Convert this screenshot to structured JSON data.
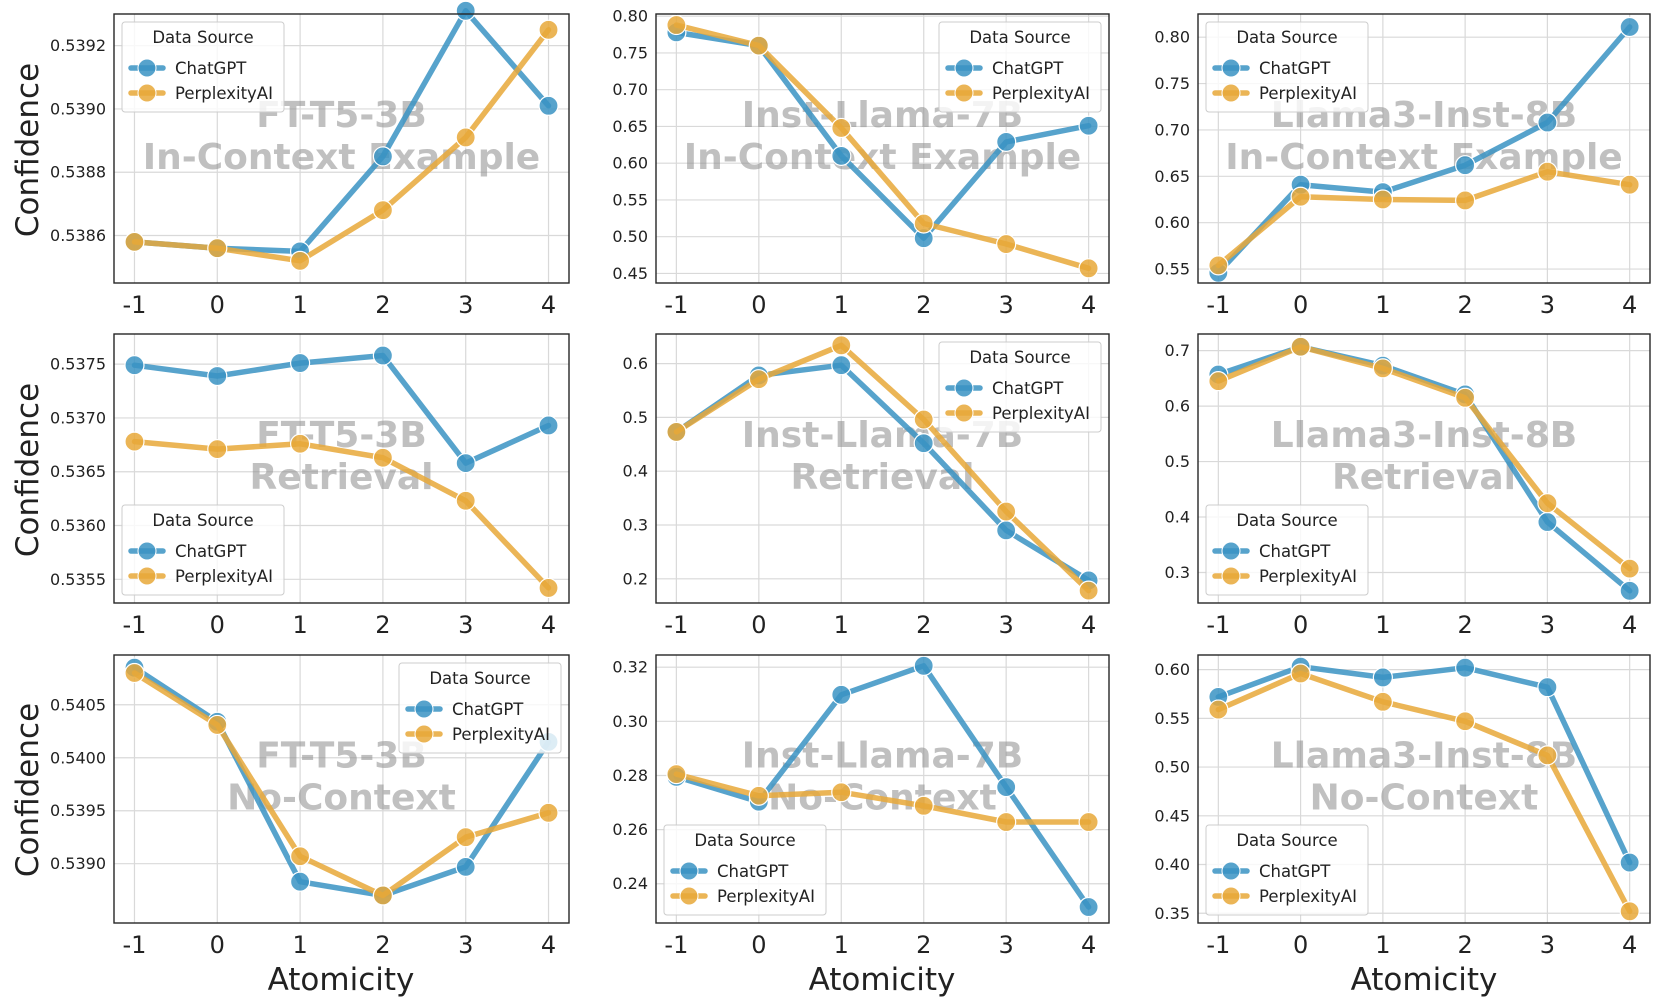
{
  "figure": {
    "xlabel": "Atomicity",
    "ylabel": "Confidence",
    "legend_title": "Data Source",
    "colors": {
      "ChatGPT": "#3a93c3",
      "PerplexityAI": "#e8a838"
    }
  },
  "chart_data": [
    {
      "type": "line",
      "title_lines": [
        "FT-T5-3B",
        "In-Context Example"
      ],
      "x": [
        -1,
        0,
        1,
        2,
        3,
        4
      ],
      "xticks": [
        "-1",
        "0",
        "1",
        "2",
        "3",
        "4"
      ],
      "ylim": [
        0.53845,
        0.5393
      ],
      "yticks": [
        "0.5386",
        "0.5388",
        "0.5390",
        "0.5392"
      ],
      "ytick_values": [
        0.5386,
        0.5388,
        0.539,
        0.5392
      ],
      "legend_loc": "upper-left",
      "series": [
        {
          "name": "ChatGPT",
          "values": [
            0.53858,
            0.53856,
            0.53855,
            0.53885,
            0.53931,
            0.53901
          ]
        },
        {
          "name": "PerplexityAI",
          "values": [
            0.53858,
            0.53856,
            0.53852,
            0.53868,
            0.53891,
            0.53925
          ]
        }
      ]
    },
    {
      "type": "line",
      "title_lines": [
        "Inst-Llama-7B",
        "In-Context Example"
      ],
      "x": [
        -1,
        0,
        1,
        2,
        3,
        4
      ],
      "xticks": [
        "-1",
        "0",
        "1",
        "2",
        "3",
        "4"
      ],
      "ylim": [
        0.437,
        0.803
      ],
      "yticks": [
        "0.45",
        "0.50",
        "0.55",
        "0.60",
        "0.65",
        "0.70",
        "0.75",
        "0.80"
      ],
      "ytick_values": [
        0.45,
        0.5,
        0.55,
        0.6,
        0.65,
        0.7,
        0.75,
        0.8
      ],
      "legend_loc": "upper-right",
      "series": [
        {
          "name": "ChatGPT",
          "values": [
            0.778,
            0.76,
            0.61,
            0.498,
            0.629,
            0.651
          ]
        },
        {
          "name": "PerplexityAI",
          "values": [
            0.788,
            0.76,
            0.648,
            0.518,
            0.49,
            0.457
          ]
        }
      ]
    },
    {
      "type": "line",
      "title_lines": [
        "Llama3-Inst-8B",
        "In-Context Example"
      ],
      "x": [
        -1,
        0,
        1,
        2,
        3,
        4
      ],
      "xticks": [
        "-1",
        "0",
        "1",
        "2",
        "3",
        "4"
      ],
      "ylim": [
        0.535,
        0.825
      ],
      "yticks": [
        "0.55",
        "0.60",
        "0.65",
        "0.70",
        "0.75",
        "0.80"
      ],
      "ytick_values": [
        0.55,
        0.6,
        0.65,
        0.7,
        0.75,
        0.8
      ],
      "legend_loc": "upper-left",
      "series": [
        {
          "name": "ChatGPT",
          "values": [
            0.546,
            0.641,
            0.633,
            0.662,
            0.708,
            0.811
          ]
        },
        {
          "name": "PerplexityAI",
          "values": [
            0.554,
            0.628,
            0.625,
            0.624,
            0.655,
            0.641
          ]
        }
      ]
    },
    {
      "type": "line",
      "title_lines": [
        "FT-T5-3B",
        "Retrieval"
      ],
      "x": [
        -1,
        0,
        1,
        2,
        3,
        4
      ],
      "xticks": [
        "-1",
        "0",
        "1",
        "2",
        "3",
        "4"
      ],
      "ylim": [
        0.53528,
        0.53778
      ],
      "yticks": [
        "0.5355",
        "0.5360",
        "0.5365",
        "0.5370",
        "0.5375"
      ],
      "ytick_values": [
        0.5355,
        0.536,
        0.5365,
        0.537,
        0.5375
      ],
      "legend_loc": "lower-left",
      "series": [
        {
          "name": "ChatGPT",
          "values": [
            0.53749,
            0.53739,
            0.53751,
            0.53758,
            0.53658,
            0.53693
          ]
        },
        {
          "name": "PerplexityAI",
          "values": [
            0.53678,
            0.53671,
            0.53676,
            0.53663,
            0.53623,
            0.53542
          ]
        }
      ]
    },
    {
      "type": "line",
      "title_lines": [
        "Inst-Llama-7B",
        "Retrieval"
      ],
      "x": [
        -1,
        0,
        1,
        2,
        3,
        4
      ],
      "xticks": [
        "-1",
        "0",
        "1",
        "2",
        "3",
        "4"
      ],
      "ylim": [
        0.155,
        0.655
      ],
      "yticks": [
        "0.2",
        "0.3",
        "0.4",
        "0.5",
        "0.6"
      ],
      "ytick_values": [
        0.2,
        0.3,
        0.4,
        0.5,
        0.6
      ],
      "legend_loc": "upper-right",
      "series": [
        {
          "name": "ChatGPT",
          "values": [
            0.473,
            0.578,
            0.597,
            0.452,
            0.29,
            0.197
          ]
        },
        {
          "name": "PerplexityAI",
          "values": [
            0.473,
            0.571,
            0.634,
            0.496,
            0.325,
            0.178
          ]
        }
      ]
    },
    {
      "type": "line",
      "title_lines": [
        "Llama3-Inst-8B",
        "Retrieval"
      ],
      "x": [
        -1,
        0,
        1,
        2,
        3,
        4
      ],
      "xticks": [
        "-1",
        "0",
        "1",
        "2",
        "3",
        "4"
      ],
      "ylim": [
        0.245,
        0.73
      ],
      "yticks": [
        "0.3",
        "0.4",
        "0.5",
        "0.6",
        "0.7"
      ],
      "ytick_values": [
        0.3,
        0.4,
        0.5,
        0.6,
        0.7
      ],
      "legend_loc": "lower-left",
      "series": [
        {
          "name": "ChatGPT",
          "values": [
            0.657,
            0.707,
            0.673,
            0.621,
            0.391,
            0.267
          ]
        },
        {
          "name": "PerplexityAI",
          "values": [
            0.645,
            0.707,
            0.668,
            0.615,
            0.425,
            0.307
          ]
        }
      ]
    },
    {
      "type": "line",
      "title_lines": [
        "FT-T5-3B",
        "No-Context"
      ],
      "x": [
        -1,
        0,
        1,
        2,
        3,
        4
      ],
      "xticks": [
        "-1",
        "0",
        "1",
        "2",
        "3",
        "4"
      ],
      "ylim": [
        0.53844,
        0.54097
      ],
      "yticks": [
        "0.5390",
        "0.5395",
        "0.5400",
        "0.5405"
      ],
      "ytick_values": [
        0.539,
        0.5395,
        0.54,
        0.5405
      ],
      "legend_loc": "upper-right",
      "series": [
        {
          "name": "ChatGPT",
          "values": [
            0.54085,
            0.54034,
            0.53883,
            0.5387,
            0.53897,
            0.54015
          ]
        },
        {
          "name": "PerplexityAI",
          "values": [
            0.5408,
            0.54031,
            0.53907,
            0.5387,
            0.53925,
            0.53948
          ]
        }
      ]
    },
    {
      "type": "line",
      "title_lines": [
        "Inst-Llama-7B",
        "No-Context"
      ],
      "x": [
        -1,
        0,
        1,
        2,
        3,
        4
      ],
      "xticks": [
        "-1",
        "0",
        "1",
        "2",
        "3",
        "4"
      ],
      "ylim": [
        0.2255,
        0.3245
      ],
      "yticks": [
        "0.24",
        "0.26",
        "0.28",
        "0.30",
        "0.32"
      ],
      "ytick_values": [
        0.24,
        0.26,
        0.28,
        0.3,
        0.32
      ],
      "legend_loc": "lower-left",
      "series": [
        {
          "name": "ChatGPT",
          "values": [
            0.2795,
            0.2703,
            0.3098,
            0.3205,
            0.2757,
            0.2314
          ]
        },
        {
          "name": "PerplexityAI",
          "values": [
            0.2805,
            0.2725,
            0.2738,
            0.2688,
            0.2628,
            0.2628
          ]
        }
      ]
    },
    {
      "type": "line",
      "title_lines": [
        "Llama3-Inst-8B",
        "No-Context"
      ],
      "x": [
        -1,
        0,
        1,
        2,
        3,
        4
      ],
      "xticks": [
        "-1",
        "0",
        "1",
        "2",
        "3",
        "4"
      ],
      "ylim": [
        0.34,
        0.615
      ],
      "yticks": [
        "0.35",
        "0.40",
        "0.45",
        "0.50",
        "0.55",
        "0.60"
      ],
      "ytick_values": [
        0.35,
        0.4,
        0.45,
        0.5,
        0.55,
        0.6
      ],
      "legend_loc": "lower-left",
      "series": [
        {
          "name": "ChatGPT",
          "values": [
            0.572,
            0.603,
            0.592,
            0.602,
            0.582,
            0.402
          ]
        },
        {
          "name": "PerplexityAI",
          "values": [
            0.559,
            0.596,
            0.567,
            0.547,
            0.512,
            0.352
          ]
        }
      ]
    }
  ]
}
